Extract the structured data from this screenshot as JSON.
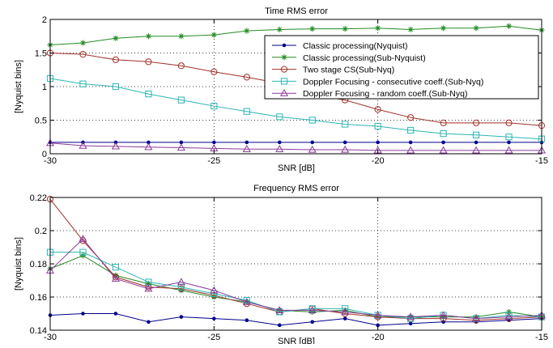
{
  "chart_data": [
    {
      "type": "line",
      "title": "Time RMS error",
      "xlabel": "SNR [dB]",
      "ylabel": "[Nyquist bins]",
      "xlim": [
        -30,
        -15
      ],
      "ylim": [
        0,
        2
      ],
      "grid": true,
      "legend_position": "top-right",
      "x_ticks": [
        -30,
        -25,
        -20,
        -15
      ],
      "x_tick_labels": [
        "-30",
        "-25",
        "-20",
        "-15"
      ],
      "y_ticks": [
        0,
        0.5,
        1,
        1.5,
        2
      ],
      "y_tick_labels": [
        "0",
        "0.5",
        "1",
        "1.5",
        "2"
      ],
      "x": [
        -30,
        -29,
        -28,
        -27,
        -26,
        -25,
        -24,
        -23,
        -22,
        -21,
        -20,
        -19,
        -18,
        -17,
        -16,
        -15
      ],
      "series": [
        {
          "name": "Classic processing(Nyquist)",
          "color": "#00008b",
          "marker": "dot",
          "values": [
            0.17,
            0.17,
            0.17,
            0.17,
            0.17,
            0.17,
            0.17,
            0.17,
            0.17,
            0.17,
            0.17,
            0.17,
            0.17,
            0.17,
            0.17,
            0.17
          ]
        },
        {
          "name": "Classic processing(Sub-Nyquist)",
          "color": "#228b22",
          "marker": "star",
          "values": [
            1.62,
            1.65,
            1.72,
            1.75,
            1.75,
            1.77,
            1.83,
            1.85,
            1.86,
            1.86,
            1.87,
            1.85,
            1.87,
            1.87,
            1.9,
            1.84
          ]
        },
        {
          "name": "Two stage CS(Sub-Nyq)",
          "color": "#a0302a",
          "marker": "circle",
          "values": [
            1.5,
            1.48,
            1.4,
            1.37,
            1.31,
            1.22,
            1.14,
            1.05,
            0.88,
            0.8,
            0.66,
            0.54,
            0.46,
            0.46,
            0.46,
            0.42
          ]
        },
        {
          "name": "Doppler Focusing - consecutive coeff.(Sub-Nyq)",
          "color": "#2cb5b5",
          "marker": "square",
          "values": [
            1.12,
            1.04,
            1.0,
            0.89,
            0.8,
            0.71,
            0.63,
            0.55,
            0.5,
            0.44,
            0.41,
            0.35,
            0.3,
            0.28,
            0.25,
            0.22
          ]
        },
        {
          "name": "Doppler Focusing - random coeff.(Sub-Nyq)",
          "color": "#8b3a9b",
          "marker": "triangle",
          "values": [
            0.16,
            0.12,
            0.11,
            0.1,
            0.09,
            0.08,
            0.07,
            0.07,
            0.06,
            0.06,
            0.05,
            0.05,
            0.05,
            0.05,
            0.05,
            0.05
          ]
        }
      ]
    },
    {
      "type": "line",
      "title": "Frequency RMS error",
      "xlabel": "SNR [dB]",
      "ylabel": "[Nyquist bins]",
      "xlim": [
        -30,
        -15
      ],
      "ylim": [
        0.14,
        0.22
      ],
      "grid": true,
      "x_ticks": [
        -30,
        -25,
        -20,
        -15
      ],
      "x_tick_labels": [
        "-30",
        "-25",
        "-20",
        "-15"
      ],
      "y_ticks": [
        0.14,
        0.16,
        0.18,
        0.2,
        0.22
      ],
      "y_tick_labels": [
        "0.14",
        "0.16",
        "0.18",
        "0.2",
        "0.22"
      ],
      "x": [
        -30,
        -29,
        -28,
        -27,
        -26,
        -25,
        -24,
        -23,
        -22,
        -21,
        -20,
        -19,
        -18,
        -17,
        -16,
        -15
      ],
      "series": [
        {
          "name": "Classic processing(Nyquist)",
          "color": "#00008b",
          "marker": "dot",
          "values": [
            0.149,
            0.15,
            0.15,
            0.145,
            0.148,
            0.147,
            0.146,
            0.143,
            0.145,
            0.147,
            0.143,
            0.144,
            0.145,
            0.145,
            0.146,
            0.147
          ]
        },
        {
          "name": "Classic processing(Sub-Nyquist)",
          "color": "#228b22",
          "marker": "star",
          "values": [
            0.177,
            0.185,
            0.173,
            0.168,
            0.164,
            0.16,
            0.157,
            0.152,
            0.151,
            0.152,
            0.148,
            0.148,
            0.148,
            0.148,
            0.151,
            0.148
          ]
        },
        {
          "name": "Two stage CS(Sub-Nyq)",
          "color": "#a0302a",
          "marker": "circle",
          "values": [
            0.219,
            0.194,
            0.172,
            0.166,
            0.165,
            0.161,
            0.156,
            0.151,
            0.153,
            0.15,
            0.148,
            0.147,
            0.147,
            0.146,
            0.147,
            0.148
          ]
        },
        {
          "name": "Doppler Focusing - consecutive coeff.(Sub-Nyq)",
          "color": "#2cb5b5",
          "marker": "square",
          "values": [
            0.187,
            0.187,
            0.178,
            0.169,
            0.166,
            0.162,
            0.158,
            0.151,
            0.153,
            0.153,
            0.149,
            0.147,
            0.149,
            0.147,
            0.149,
            0.148
          ]
        },
        {
          "name": "Doppler Focusing - random coeff.(Sub-Nyq)",
          "color": "#8b3a9b",
          "marker": "triangle",
          "values": [
            0.176,
            0.195,
            0.171,
            0.165,
            0.169,
            0.164,
            0.157,
            0.152,
            0.152,
            0.151,
            0.149,
            0.148,
            0.149,
            0.147,
            0.148,
            0.149
          ]
        }
      ]
    }
  ]
}
